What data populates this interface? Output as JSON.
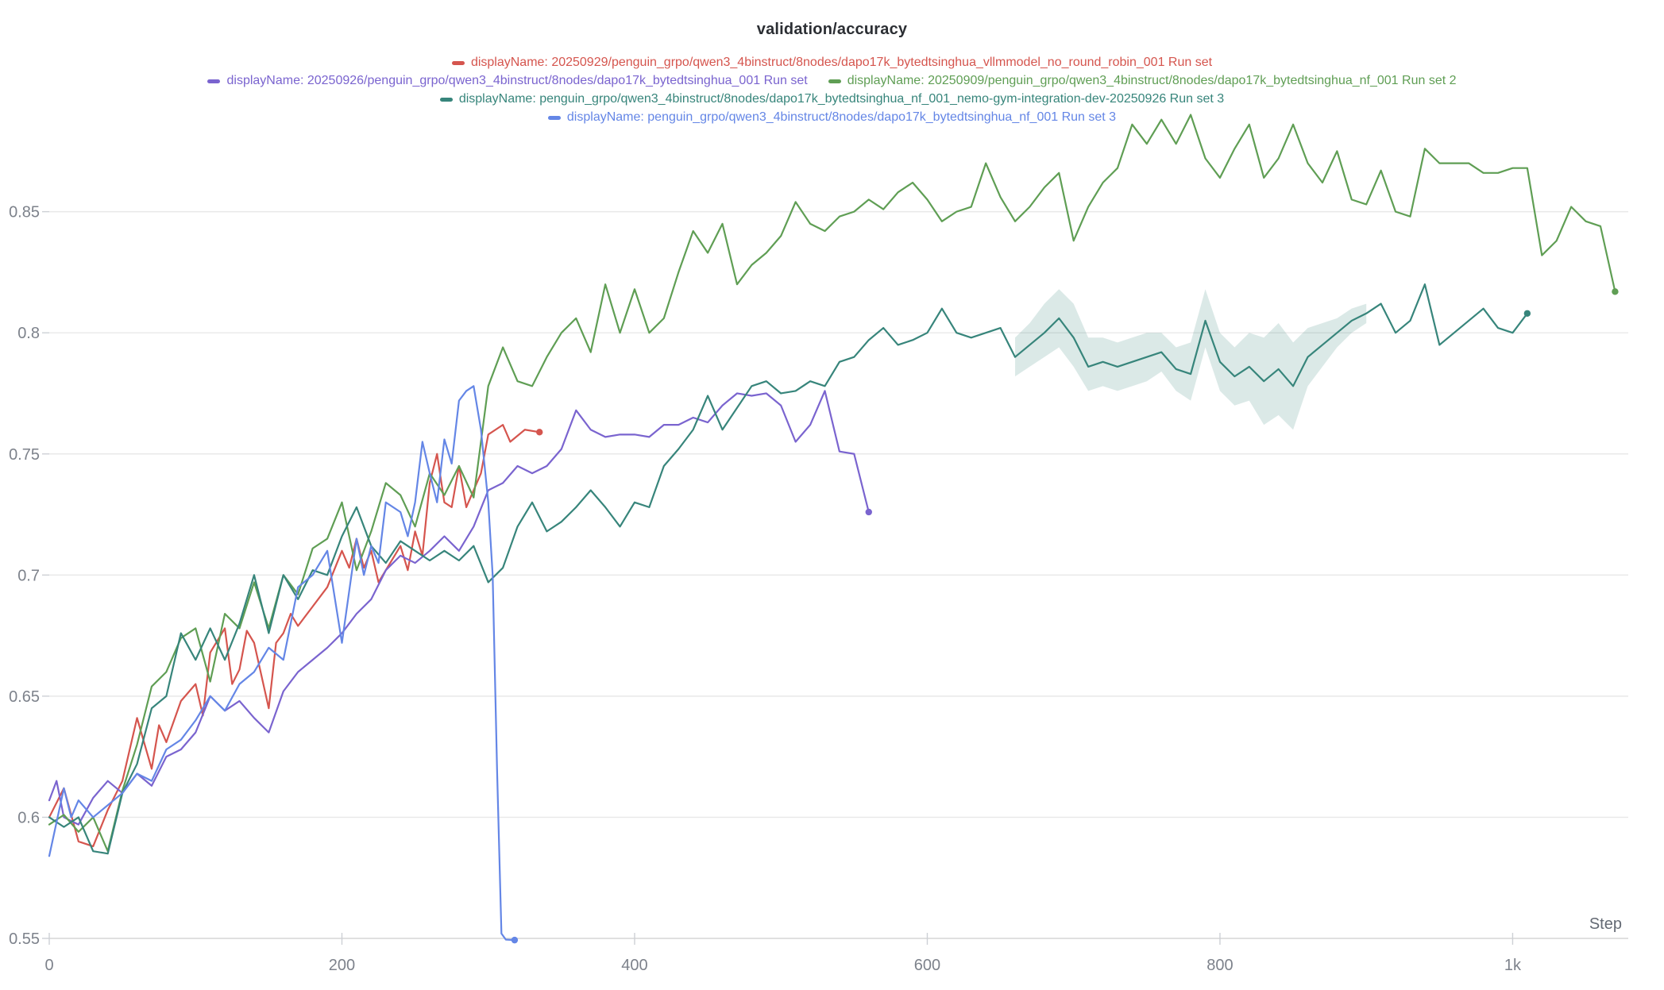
{
  "chart_data": {
    "type": "line",
    "title": "validation/accuracy",
    "xlabel": "Step",
    "ylabel": "",
    "xlim": [
      0,
      1079
    ],
    "ylim": [
      0.55,
      0.8915
    ],
    "grid": "horizontal",
    "legend_position": "top",
    "x_ticks": {
      "values": [
        0,
        200,
        400,
        600,
        800,
        1000
      ],
      "labels": [
        "0",
        "200",
        "400",
        "600",
        "800",
        "1k"
      ]
    },
    "y_ticks": {
      "values": [
        0.55,
        0.6,
        0.65,
        0.7,
        0.75,
        0.8,
        0.85
      ],
      "labels": [
        "0.55",
        "0.6",
        "0.65",
        "0.7",
        "0.75",
        "0.8",
        "0.85"
      ]
    },
    "colors": {
      "grid": "#e8e8e8",
      "axis": "#d5d5d5",
      "tick": "#cdd0d5",
      "tick_text": "#7d828b",
      "title_text": "#2b2e33",
      "band_opacity": 0.18
    },
    "legend_rows": [
      [
        0
      ],
      [
        1,
        2
      ],
      [
        3
      ],
      [
        4
      ]
    ],
    "series": [
      {
        "name": "run-20250929-vllmmodel-no-round-robin",
        "label": "displayName: 20250929/penguin_grpo/qwen3_4binstruct/8nodes/dapo17k_bytedtsinghua_vllmmodel_no_round_robin_001 Run set",
        "color": "#d5554e",
        "end_marker": true,
        "x": [
          0,
          10,
          20,
          30,
          40,
          50,
          60,
          70,
          75,
          80,
          90,
          100,
          105,
          110,
          120,
          125,
          130,
          135,
          140,
          150,
          155,
          160,
          165,
          170,
          180,
          190,
          200,
          205,
          210,
          215,
          220,
          225,
          230,
          240,
          245,
          250,
          255,
          260,
          265,
          270,
          275,
          280,
          285,
          290,
          295,
          300,
          310,
          315,
          325,
          335
        ],
        "y": [
          0.6,
          0.612,
          0.59,
          0.588,
          0.603,
          0.615,
          0.641,
          0.62,
          0.638,
          0.631,
          0.648,
          0.655,
          0.642,
          0.668,
          0.678,
          0.655,
          0.661,
          0.677,
          0.672,
          0.645,
          0.672,
          0.676,
          0.684,
          0.679,
          0.687,
          0.695,
          0.71,
          0.703,
          0.715,
          0.703,
          0.71,
          0.697,
          0.702,
          0.712,
          0.702,
          0.718,
          0.708,
          0.738,
          0.75,
          0.73,
          0.728,
          0.745,
          0.728,
          0.735,
          0.742,
          0.758,
          0.762,
          0.755,
          0.76,
          0.759
        ]
      },
      {
        "name": "run-20250926-bytedtsinghua-001",
        "label": "displayName: 20250926/penguin_grpo/qwen3_4binstruct/8nodes/dapo17k_bytedtsinghua_001 Run set",
        "color": "#7a64cf",
        "end_marker": true,
        "x": [
          0,
          5,
          10,
          20,
          30,
          40,
          50,
          60,
          70,
          80,
          90,
          100,
          110,
          120,
          130,
          140,
          150,
          160,
          170,
          180,
          190,
          200,
          210,
          220,
          230,
          240,
          250,
          260,
          270,
          280,
          290,
          300,
          310,
          320,
          330,
          340,
          350,
          360,
          370,
          380,
          390,
          400,
          410,
          420,
          430,
          440,
          450,
          460,
          470,
          480,
          490,
          500,
          510,
          520,
          530,
          540,
          550,
          560
        ],
        "y": [
          0.607,
          0.615,
          0.6,
          0.597,
          0.608,
          0.615,
          0.61,
          0.618,
          0.613,
          0.625,
          0.628,
          0.635,
          0.65,
          0.644,
          0.648,
          0.641,
          0.635,
          0.652,
          0.66,
          0.665,
          0.67,
          0.676,
          0.684,
          0.69,
          0.702,
          0.708,
          0.705,
          0.71,
          0.716,
          0.71,
          0.72,
          0.735,
          0.738,
          0.745,
          0.742,
          0.745,
          0.752,
          0.768,
          0.76,
          0.757,
          0.758,
          0.758,
          0.757,
          0.762,
          0.762,
          0.765,
          0.763,
          0.77,
          0.775,
          0.774,
          0.775,
          0.77,
          0.755,
          0.762,
          0.776,
          0.751,
          0.75,
          0.726
        ]
      },
      {
        "name": "run-20250909-nf-001",
        "label": "displayName: 20250909/penguin_grpo/qwen3_4binstruct/8nodes/dapo17k_bytedtsinghua_nf_001 Run set 2",
        "color": "#5f9e54",
        "end_marker": true,
        "x0": 0,
        "dx": 10,
        "y": [
          0.597,
          0.601,
          0.594,
          0.6,
          0.586,
          0.611,
          0.63,
          0.654,
          0.66,
          0.674,
          0.678,
          0.656,
          0.684,
          0.678,
          0.697,
          0.678,
          0.7,
          0.692,
          0.711,
          0.715,
          0.73,
          0.702,
          0.718,
          0.738,
          0.733,
          0.72,
          0.742,
          0.733,
          0.745,
          0.732,
          0.778,
          0.794,
          0.78,
          0.778,
          0.79,
          0.8,
          0.806,
          0.792,
          0.82,
          0.8,
          0.818,
          0.8,
          0.806,
          0.825,
          0.842,
          0.833,
          0.845,
          0.82,
          0.828,
          0.833,
          0.84,
          0.854,
          0.845,
          0.842,
          0.848,
          0.85,
          0.855,
          0.851,
          0.858,
          0.862,
          0.855,
          0.846,
          0.85,
          0.852,
          0.87,
          0.856,
          0.846,
          0.852,
          0.86,
          0.866,
          0.838,
          0.852,
          0.862,
          0.868,
          0.886,
          0.878,
          0.888,
          0.878,
          0.89,
          0.872,
          0.864,
          0.876,
          0.886,
          0.864,
          0.872,
          0.886,
          0.87,
          0.862,
          0.875,
          0.855,
          0.853,
          0.867,
          0.85,
          0.848,
          0.876,
          0.87,
          0.87,
          0.87,
          0.866,
          0.866,
          0.868,
          0.868,
          0.832,
          0.838,
          0.852,
          0.846,
          0.844,
          0.817
        ]
      },
      {
        "name": "run-nemo-gym-integration-dev-20250926",
        "label": "displayName: penguin_grpo/qwen3_4binstruct/8nodes/dapo17k_bytedtsinghua_nf_001_nemo-gym-integration-dev-20250926 Run set 3",
        "color": "#37857b",
        "end_marker": true,
        "x0": 0,
        "dx": 10,
        "y": [
          0.6,
          0.596,
          0.6,
          0.586,
          0.585,
          0.61,
          0.622,
          0.645,
          0.65,
          0.676,
          0.665,
          0.678,
          0.665,
          0.68,
          0.7,
          0.676,
          0.7,
          0.69,
          0.702,
          0.7,
          0.716,
          0.728,
          0.712,
          0.705,
          0.714,
          0.71,
          0.706,
          0.71,
          0.706,
          0.712,
          0.697,
          0.703,
          0.72,
          0.73,
          0.718,
          0.722,
          0.728,
          0.735,
          0.728,
          0.72,
          0.73,
          0.728,
          0.745,
          0.752,
          0.76,
          0.774,
          0.76,
          0.769,
          0.778,
          0.78,
          0.775,
          0.776,
          0.78,
          0.778,
          0.788,
          0.79,
          0.797,
          0.802,
          0.795,
          0.797,
          0.8,
          0.81,
          0.8,
          0.798,
          0.8,
          0.802,
          0.79,
          0.795,
          0.8,
          0.806,
          0.798,
          0.786,
          0.788,
          0.786,
          0.788,
          0.79,
          0.792,
          0.785,
          0.783,
          0.805,
          0.788,
          0.782,
          0.786,
          0.78,
          0.785,
          0.778,
          0.79,
          0.795,
          0.8,
          0.805,
          0.808,
          0.812,
          0.8,
          0.805,
          0.82,
          0.795,
          0.8,
          0.805,
          0.81,
          0.802,
          0.8,
          0.808
        ],
        "band": {
          "x": [
            660,
            670,
            680,
            690,
            700,
            710,
            720,
            730,
            740,
            750,
            760,
            770,
            780,
            790,
            800,
            810,
            820,
            830,
            840,
            850,
            860,
            870,
            880,
            890,
            900
          ],
          "lo": [
            0.782,
            0.786,
            0.79,
            0.794,
            0.786,
            0.776,
            0.778,
            0.776,
            0.778,
            0.78,
            0.784,
            0.776,
            0.772,
            0.794,
            0.776,
            0.77,
            0.772,
            0.762,
            0.766,
            0.76,
            0.778,
            0.786,
            0.794,
            0.8,
            0.804
          ],
          "hi": [
            0.798,
            0.804,
            0.812,
            0.818,
            0.812,
            0.798,
            0.798,
            0.796,
            0.798,
            0.8,
            0.8,
            0.794,
            0.796,
            0.818,
            0.8,
            0.794,
            0.8,
            0.798,
            0.804,
            0.796,
            0.802,
            0.804,
            0.806,
            0.81,
            0.812
          ]
        }
      },
      {
        "name": "run-nf-001-run-set-3",
        "label": "displayName: penguin_grpo/qwen3_4binstruct/8nodes/dapo17k_bytedtsinghua_nf_001 Run set 3",
        "color": "#6486e6",
        "end_marker": true,
        "x": [
          0,
          10,
          15,
          20,
          30,
          40,
          50,
          60,
          70,
          80,
          90,
          100,
          110,
          120,
          130,
          140,
          150,
          160,
          170,
          180,
          190,
          200,
          210,
          215,
          220,
          225,
          230,
          240,
          245,
          250,
          255,
          260,
          265,
          270,
          275,
          280,
          285,
          290,
          295,
          300,
          303,
          306,
          309,
          312,
          318
        ],
        "y": [
          0.584,
          0.612,
          0.6,
          0.607,
          0.6,
          0.605,
          0.61,
          0.618,
          0.615,
          0.628,
          0.632,
          0.64,
          0.65,
          0.644,
          0.655,
          0.66,
          0.67,
          0.665,
          0.695,
          0.7,
          0.71,
          0.672,
          0.715,
          0.7,
          0.712,
          0.705,
          0.73,
          0.726,
          0.716,
          0.73,
          0.755,
          0.742,
          0.73,
          0.756,
          0.746,
          0.772,
          0.776,
          0.778,
          0.76,
          0.73,
          0.7,
          0.62,
          0.552,
          0.5495,
          0.5493
        ]
      }
    ]
  }
}
